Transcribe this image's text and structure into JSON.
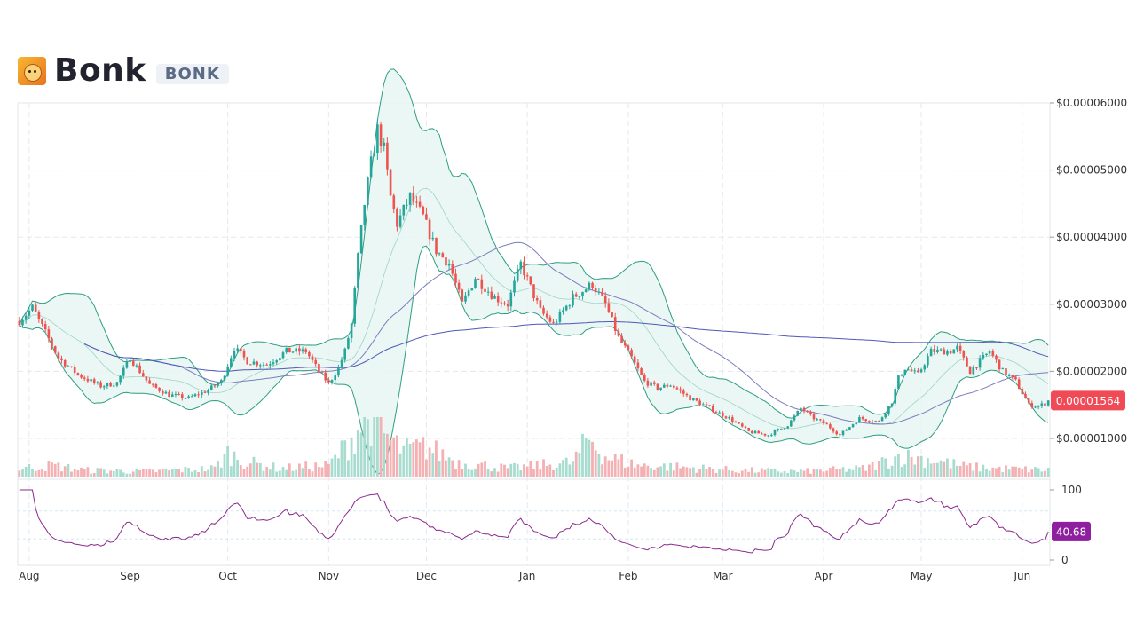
{
  "header": {
    "title": "Bonk",
    "ticker": "BONK",
    "logo_icon": "bonk-dog-logo-icon"
  },
  "colors": {
    "up": "#26a69a",
    "down": "#ef5350",
    "band_fill": "#e6f6f2",
    "band_line": "#2e9e80",
    "ma_short": "#7c7cc0",
    "ma_long": "#4e58b8",
    "rsi": "#8a2a8c",
    "price_tag": "#ef4a55",
    "rsi_tag": "#8e1f9e"
  },
  "chart_data": {
    "type": "candlestick",
    "title": "",
    "price_axis": {
      "ticks": [
        "$0.00006000",
        "$0.00005000",
        "$0.00004000",
        "$0.00003000",
        "$0.00002000",
        "$0.00001000"
      ],
      "tick_values": [
        6e-05,
        5e-05,
        4e-05,
        3e-05,
        2e-05,
        1e-05
      ],
      "range": [
        5.5e-06,
        6e-05
      ],
      "last_price_label": "0.00001564",
      "last_price": 1.564e-05
    },
    "x_axis": {
      "labels": [
        "Aug",
        "Sep",
        "Oct",
        "Nov",
        "Dec",
        "Jan",
        "Feb",
        "Mar",
        "Apr",
        "May",
        "Jun"
      ],
      "label_day_index": [
        3,
        34,
        64,
        95,
        125,
        156,
        187,
        216,
        247,
        277,
        308
      ],
      "total_days": 317
    },
    "price_anchors_day": [
      0,
      4,
      12,
      18,
      25,
      30,
      34,
      40,
      46,
      52,
      58,
      62,
      66,
      70,
      76,
      82,
      88,
      92,
      95,
      98,
      100,
      102,
      104,
      106,
      108,
      110,
      112,
      114,
      116,
      118,
      120,
      124,
      128,
      132,
      136,
      140,
      146,
      150,
      154,
      160,
      164,
      170,
      176,
      180,
      184,
      188,
      192,
      196,
      200,
      206,
      212,
      218,
      224,
      230,
      236,
      240,
      244,
      248,
      252,
      258,
      264,
      268,
      270,
      272,
      276,
      280,
      286,
      288,
      292,
      298,
      302,
      306,
      310,
      313,
      317
    ],
    "price_anchors": [
      2.75e-05,
      2.95e-05,
      2.2e-05,
      1.95e-05,
      1.78e-05,
      1.83e-05,
      2.2e-05,
      1.8e-05,
      1.65e-05,
      1.6e-05,
      1.72e-05,
      1.85e-05,
      2.35e-05,
      2.15e-05,
      2.1e-05,
      2.3e-05,
      2.3e-05,
      2e-05,
      1.82e-05,
      2.05e-05,
      2.3e-05,
      2.7e-05,
      3.7e-05,
      4.5e-05,
      5.1e-05,
      5.6e-05,
      5.3e-05,
      4.6e-05,
      4.2e-05,
      4.4e-05,
      4.6e-05,
      4.3e-05,
      3.8e-05,
      3.6e-05,
      3e-05,
      3.4e-05,
      3.1e-05,
      3e-05,
      3.6e-05,
      2.9e-05,
      2.7e-05,
      3.1e-05,
      3.3e-05,
      3e-05,
      2.5e-05,
      2.2e-05,
      1.85e-05,
      1.75e-05,
      1.8e-05,
      1.6e-05,
      1.45e-05,
      1.3e-05,
      1.1e-05,
      1.05e-05,
      1.2e-05,
      1.45e-05,
      1.3e-05,
      1.2e-05,
      1.05e-05,
      1.3e-05,
      1.25e-05,
      1.55e-05,
      1.9e-05,
      2.05e-05,
      1.95e-05,
      2.3e-05,
      2.3e-05,
      2.35e-05,
      2e-05,
      2.3e-05,
      2e-05,
      1.85e-05,
      1.5e-05,
      1.48e-05,
      1.564e-05
    ],
    "indicators": [
      "Bollinger Bands (20)",
      "Moving Average (short)",
      "Moving Average (long)",
      "Volume",
      "RSI (14)"
    ],
    "volume_anchors_day": [
      0,
      10,
      20,
      40,
      60,
      64,
      70,
      80,
      95,
      100,
      104,
      106,
      108,
      110,
      114,
      118,
      125,
      135,
      150,
      160,
      170,
      175,
      180,
      190,
      200,
      220,
      240,
      260,
      270,
      280,
      290,
      300,
      317
    ],
    "volume_anchors": [
      0.15,
      0.2,
      0.12,
      0.1,
      0.15,
      0.4,
      0.25,
      0.15,
      0.2,
      0.5,
      0.8,
      0.95,
      1.0,
      0.85,
      0.6,
      0.45,
      0.5,
      0.25,
      0.15,
      0.2,
      0.25,
      0.65,
      0.35,
      0.2,
      0.18,
      0.12,
      0.1,
      0.15,
      0.35,
      0.3,
      0.18,
      0.15,
      0.12
    ],
    "rsi": {
      "axis_ticks": [
        "100",
        "0"
      ],
      "range": [
        0,
        100
      ],
      "bands": [
        70,
        50,
        30
      ],
      "last_value_label": "40.68",
      "last_value": 40.68
    }
  }
}
